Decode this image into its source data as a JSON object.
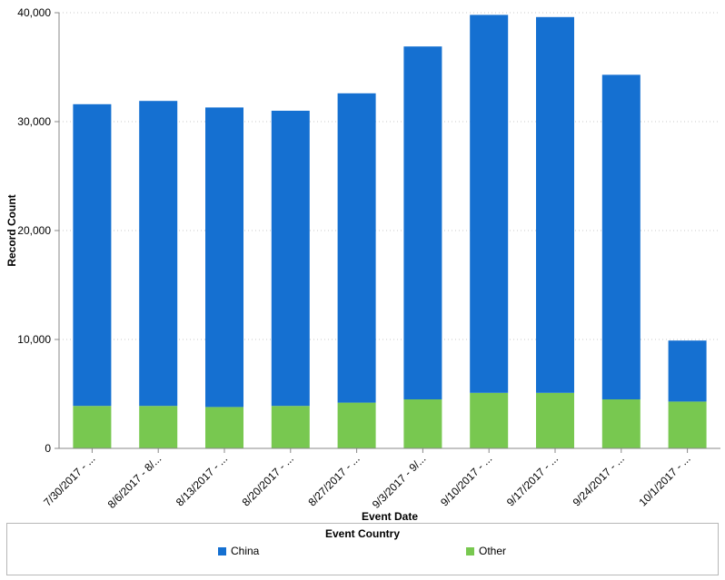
{
  "chart_data": {
    "type": "bar",
    "stacked": true,
    "xlabel": "Event Date",
    "ylabel": "Record Count",
    "ylim": [
      0,
      40000
    ],
    "yticks": [
      0,
      10000,
      20000,
      30000,
      40000
    ],
    "ytick_labels": [
      "0",
      "10,000",
      "20,000",
      "30,000",
      "40,000"
    ],
    "grid": "horizontal dotted",
    "categories": [
      "7/30/2017 - ...",
      "8/6/2017 - 8/...",
      "8/13/2017 - ...",
      "8/20/2017 - ...",
      "8/27/2017 - ...",
      "9/3/2017 - 9/...",
      "9/10/2017 - ...",
      "9/17/2017 - ...",
      "9/24/2017 - ...",
      "10/1/2017 - ..."
    ],
    "series": [
      {
        "name": "Other",
        "color": "#78c850",
        "values": [
          3900,
          3900,
          3800,
          3900,
          4200,
          4500,
          5100,
          5100,
          4500,
          4300
        ]
      },
      {
        "name": "China",
        "color": "#1570d1",
        "values": [
          27700,
          28000,
          27500,
          27100,
          28400,
          32400,
          34700,
          34500,
          29800,
          5600
        ]
      }
    ],
    "legend": {
      "title": "Event Country",
      "position": "bottom",
      "entries": [
        "China",
        "Other"
      ]
    }
  }
}
